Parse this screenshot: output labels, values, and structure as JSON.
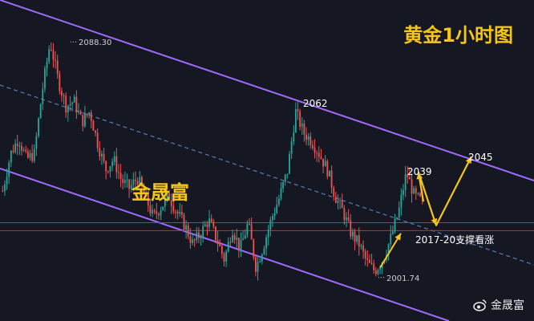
{
  "header": {
    "title": "黄金1小时图",
    "brand": "金晟富",
    "watermark": "金晟富"
  },
  "colors": {
    "background": "#151722",
    "up_candle": "#26a69a",
    "down_candle": "#ef5350",
    "channel_line": "#a16bff",
    "midline": "#5b7db8",
    "support_line": "#b33a3a",
    "projection": "#f5c518",
    "text": "#ffffff"
  },
  "chart_data": {
    "type": "candlestick",
    "title": "黄金1小时图",
    "ylim": [
      1995,
      2092
    ],
    "grid": false,
    "price_series_shape": [
      2032,
      2046,
      2052,
      2044,
      2046,
      2070,
      2088.3,
      2074,
      2064,
      2066,
      2058,
      2062,
      2050,
      2040,
      2044,
      2036,
      2033,
      2037,
      2030,
      2022,
      2026,
      2030,
      2024,
      2019,
      2012,
      2016,
      2021,
      2014,
      2006,
      2018,
      2010,
      2020,
      2003,
      2012,
      2022,
      2030,
      2040,
      2062,
      2054,
      2051,
      2046,
      2040,
      2030,
      2024,
      2016,
      2012,
      2005,
      2001.74,
      2006,
      2014,
      2024,
      2039,
      2030,
      2028
    ],
    "annotations": [
      {
        "label": "2088.30",
        "role": "high"
      },
      {
        "label": "2062",
        "role": "swing-high"
      },
      {
        "label": "2001.74",
        "role": "low"
      },
      {
        "label": "2039",
        "role": "target-1"
      },
      {
        "label": "2045",
        "role": "target-2"
      },
      {
        "label": "2017-20支撑看涨",
        "role": "support-note"
      }
    ],
    "support_levels": [
      2017,
      2020
    ],
    "projection_path": [
      2028,
      2039,
      2019,
      2045
    ]
  }
}
